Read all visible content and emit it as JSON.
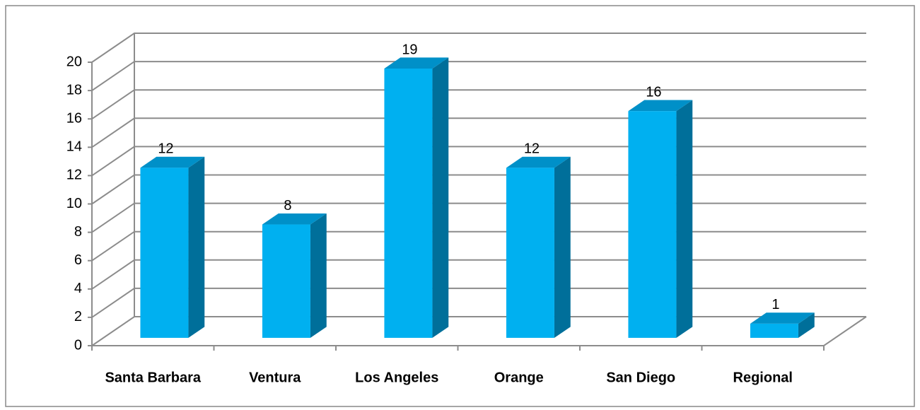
{
  "chart_data": {
    "type": "bar3d",
    "categories": [
      "Santa Barbara",
      "Ventura",
      "Los Angeles",
      "Orange",
      "San Diego",
      "Regional"
    ],
    "values": [
      12,
      8,
      19,
      12,
      16,
      1
    ],
    "color": "#00b0f0",
    "side_color": "#006f9a",
    "top_color": "#0090c8",
    "ylim": [
      0,
      20
    ],
    "yticks": [
      0,
      2,
      4,
      6,
      8,
      10,
      12,
      14,
      16,
      18,
      20
    ],
    "grid": true
  }
}
